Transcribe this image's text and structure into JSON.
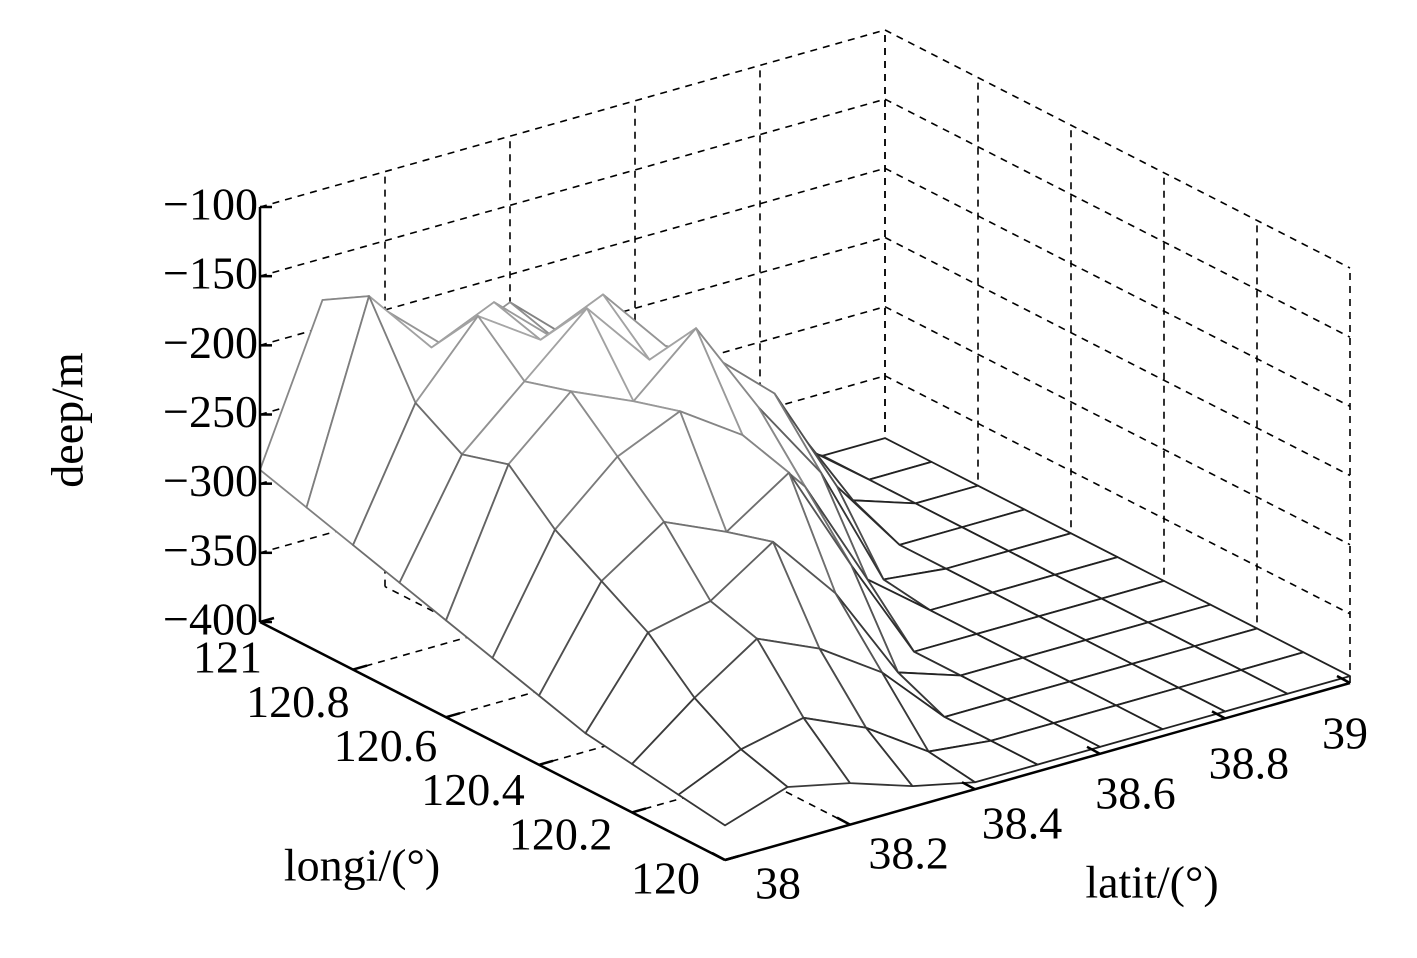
{
  "chart_data": {
    "type": "surface",
    "xlabel": "latit/(°)",
    "ylabel": "longi/(°)",
    "zlabel": "deep/m",
    "x": [
      38,
      38.1,
      38.2,
      38.3,
      38.4,
      38.5,
      38.6,
      38.7,
      38.8,
      38.9,
      39
    ],
    "y": [
      120,
      120.1,
      120.2,
      120.3,
      120.4,
      120.5,
      120.6,
      120.7,
      120.8,
      120.9,
      121
    ],
    "z": [
      [
        -375,
        -360,
        -370,
        -385,
        -395,
        -395,
        -395,
        -395,
        -395,
        -395,
        -395
      ],
      [
        -370,
        -350,
        -340,
        -360,
        -390,
        -395,
        -395,
        -395,
        -395,
        -395,
        -395
      ],
      [
        -365,
        -330,
        -300,
        -320,
        -350,
        -395,
        -395,
        -395,
        -395,
        -395,
        -395
      ],
      [
        -360,
        -300,
        -290,
        -260,
        -310,
        -380,
        -395,
        -395,
        -395,
        -395,
        -395
      ],
      [
        -350,
        -280,
        -250,
        -270,
        -240,
        -320,
        -395,
        -395,
        -395,
        -395,
        -395
      ],
      [
        -340,
        -260,
        -220,
        -200,
        -230,
        -280,
        -360,
        -395,
        -395,
        -395,
        -395
      ],
      [
        -330,
        -230,
        -190,
        -210,
        -170,
        -240,
        -300,
        -390,
        -395,
        -395,
        -395
      ],
      [
        -320,
        -240,
        -200,
        -160,
        -210,
        -220,
        -260,
        -340,
        -395,
        -395,
        -395
      ],
      [
        -310,
        -220,
        -170,
        -200,
        -180,
        -230,
        -270,
        -310,
        -380,
        -395,
        -395
      ],
      [
        -300,
        -160,
        -210,
        -190,
        -230,
        -250,
        -280,
        -320,
        -360,
        -395,
        -395
      ],
      [
        -290,
        -180,
        -200,
        -240,
        -220,
        -260,
        -300,
        -330,
        -370,
        -395,
        -395
      ]
    ],
    "xlim": [
      38,
      39
    ],
    "ylim": [
      120,
      121
    ],
    "zlim": [
      -400,
      -100
    ],
    "xticks": [
      38,
      38.2,
      38.4,
      38.6,
      38.8,
      39
    ],
    "yticks": [
      120,
      120.2,
      120.4,
      120.6,
      120.8,
      121
    ],
    "zticks": [
      {
        "value": -400,
        "label": "−400"
      },
      {
        "value": -350,
        "label": "−350"
      },
      {
        "value": -300,
        "label": "−300"
      },
      {
        "value": -250,
        "label": "−250"
      },
      {
        "value": -200,
        "label": "−200"
      },
      {
        "value": -150,
        "label": "−150"
      },
      {
        "value": -100,
        "label": "−100"
      }
    ],
    "grid": true,
    "colormap": [
      "#1e1e1e",
      "#dadada"
    ]
  }
}
